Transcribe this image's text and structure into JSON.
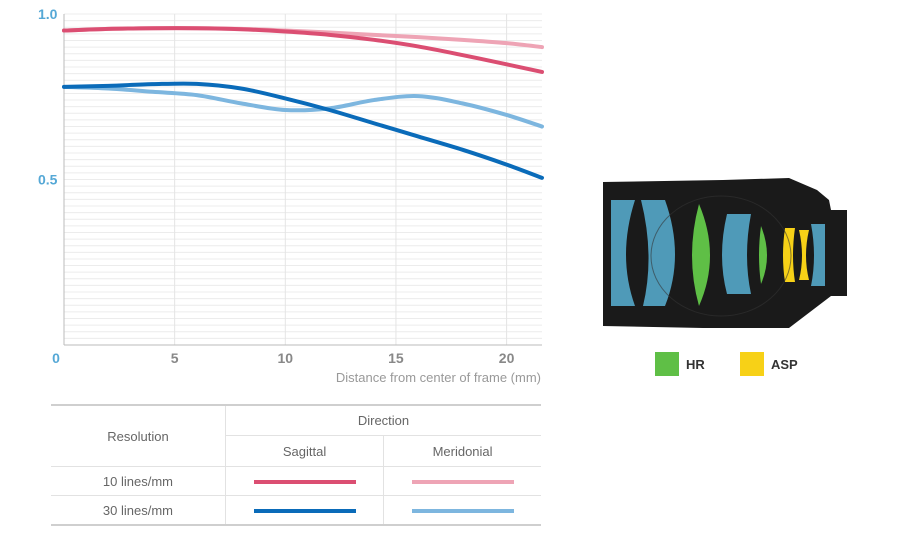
{
  "chart_data": {
    "type": "line",
    "xlabel": "Distance from center of frame (mm)",
    "ylabel": "",
    "xlim": [
      0,
      21.6
    ],
    "ylim": [
      0,
      1.0
    ],
    "xticks": [
      0,
      5,
      10,
      15,
      20
    ],
    "yticks": [
      0.5,
      1.0
    ],
    "ytick_labels": [
      "0.5",
      "1.0"
    ],
    "xtick_labels": [
      "0",
      "5",
      "10",
      "15",
      "20"
    ],
    "grid": true,
    "series": [
      {
        "resolution": "10 lines/mm",
        "direction": "Sagittal",
        "color": "#db4e72",
        "x": [
          0,
          2,
          4,
          6,
          8,
          10,
          12,
          14,
          16,
          18,
          20,
          21.6
        ],
        "y": [
          0.95,
          0.955,
          0.957,
          0.957,
          0.954,
          0.947,
          0.937,
          0.922,
          0.902,
          0.876,
          0.848,
          0.825
        ]
      },
      {
        "resolution": "10 lines/mm",
        "direction": "Meridonial",
        "color": "#eea4b5",
        "x": [
          0,
          2,
          4,
          6,
          8,
          10,
          12,
          14,
          16,
          18,
          20,
          21.6
        ],
        "y": [
          0.95,
          0.955,
          0.957,
          0.957,
          0.955,
          0.95,
          0.944,
          0.937,
          0.93,
          0.922,
          0.912,
          0.9
        ]
      },
      {
        "resolution": "30 lines/mm",
        "direction": "Sagittal",
        "color": "#0a6bb9",
        "x": [
          0,
          2,
          4,
          6,
          8,
          10,
          12,
          14,
          16,
          18,
          20,
          21.6
        ],
        "y": [
          0.78,
          0.783,
          0.788,
          0.789,
          0.775,
          0.745,
          0.71,
          0.67,
          0.63,
          0.59,
          0.545,
          0.505
        ]
      },
      {
        "resolution": "30 lines/mm",
        "direction": "Meridonial",
        "color": "#7db6df",
        "x": [
          0,
          2,
          4,
          6,
          8,
          10,
          12,
          14,
          16,
          18,
          20,
          21.6
        ],
        "y": [
          0.78,
          0.775,
          0.765,
          0.755,
          0.73,
          0.71,
          0.715,
          0.74,
          0.752,
          0.73,
          0.695,
          0.66
        ]
      }
    ]
  },
  "colors": {
    "axis_label": "#55a8d6",
    "tick_label": "#888888",
    "sag_10": "#db4e72",
    "mer_10": "#eea4b5",
    "sag_30": "#0a6bb9",
    "mer_30": "#7db6df",
    "hr": "#5fbf46",
    "asp": "#f7d117"
  },
  "legend_table": {
    "resolution_header": "Resolution",
    "direction_header": "Direction",
    "sagittal_header": "Sagittal",
    "meridional_header": "Meridonial",
    "rows": [
      {
        "label": "10 lines/mm"
      },
      {
        "label": "30 lines/mm"
      }
    ]
  },
  "lens_legend": {
    "hr_label": "HR",
    "asp_label": "ASP"
  }
}
